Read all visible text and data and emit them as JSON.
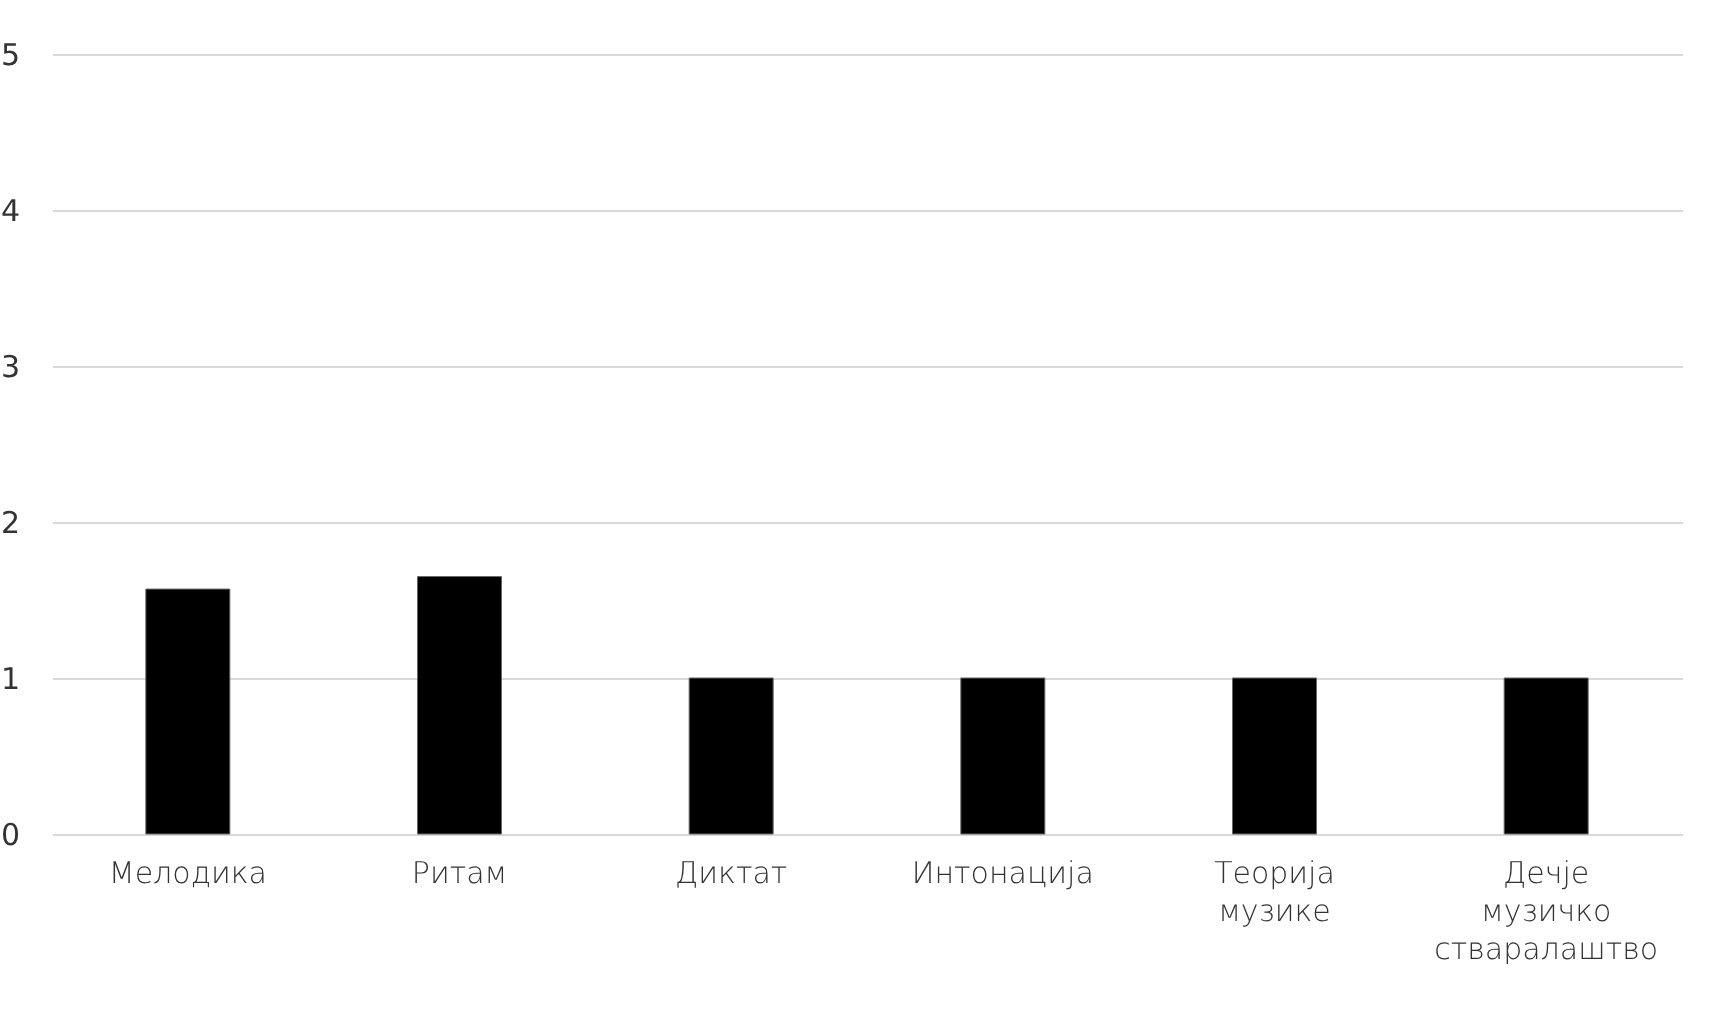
{
  "chart_data": {
    "type": "bar",
    "categories": [
      "Мелодика",
      "Ритам",
      "Диктат",
      "Интонација",
      "Теорија\nмузике",
      "Дечје\nмузичко\nстваралаштво"
    ],
    "values": [
      1.57,
      1.65,
      1,
      1,
      1,
      1
    ],
    "color": "#000000",
    "ylim": [
      0,
      5
    ],
    "yticks": [
      0,
      1,
      2,
      3,
      4,
      5
    ],
    "grid": "y"
  }
}
